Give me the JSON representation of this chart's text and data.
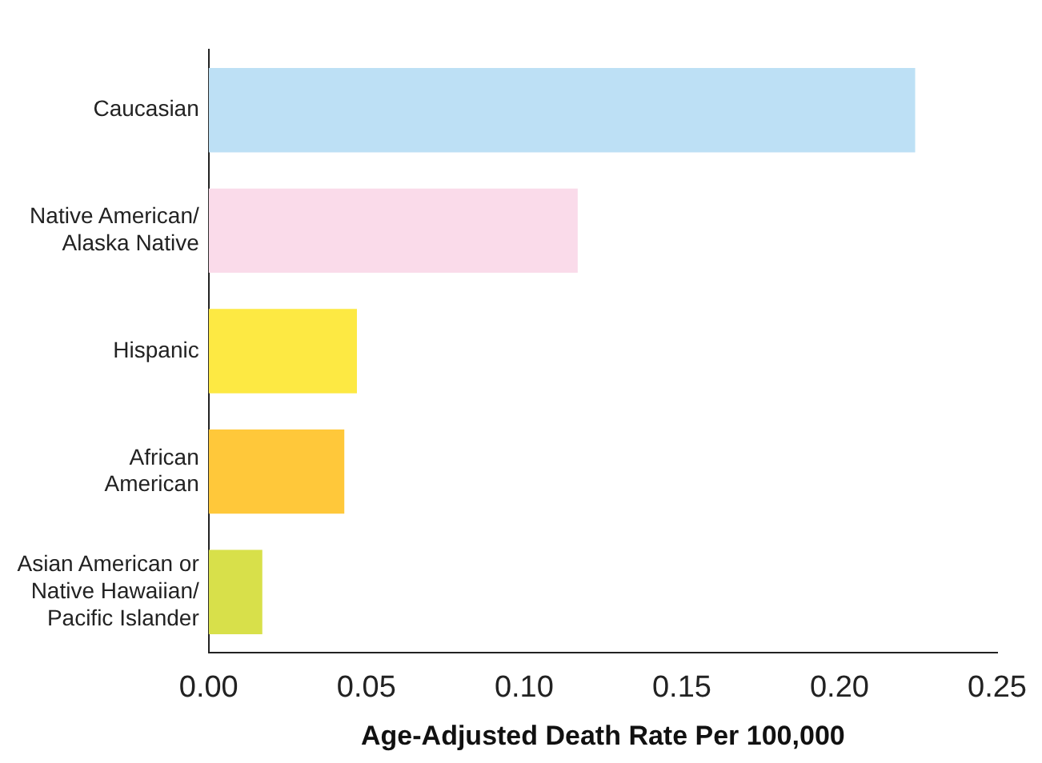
{
  "chart_data": {
    "type": "bar",
    "orientation": "horizontal",
    "xlabel": "Age-Adjusted Death Rate Per 100,000",
    "categories": [
      "Caucasian",
      "Native American/\nAlaska Native",
      "Hispanic",
      "African\nAmerican",
      "Asian American or\nNative Hawaiian/\nPacific Islander"
    ],
    "values": [
      0.224,
      0.117,
      0.047,
      0.043,
      0.017
    ],
    "colors": [
      "#bde0f5",
      "#fadbea",
      "#fde943",
      "#ffc83a",
      "#d8e04a"
    ],
    "xlim": [
      0,
      0.25
    ],
    "xticks": [
      {
        "value": 0,
        "label": "0.00"
      },
      {
        "value": 0.05,
        "label": "0.05"
      },
      {
        "value": 0.1,
        "label": "0.10"
      },
      {
        "value": 0.15,
        "label": "0.15"
      },
      {
        "value": 0.2,
        "label": "0.20"
      },
      {
        "value": 0.25,
        "label": "0.25"
      }
    ],
    "grid": false,
    "legend": false
  }
}
